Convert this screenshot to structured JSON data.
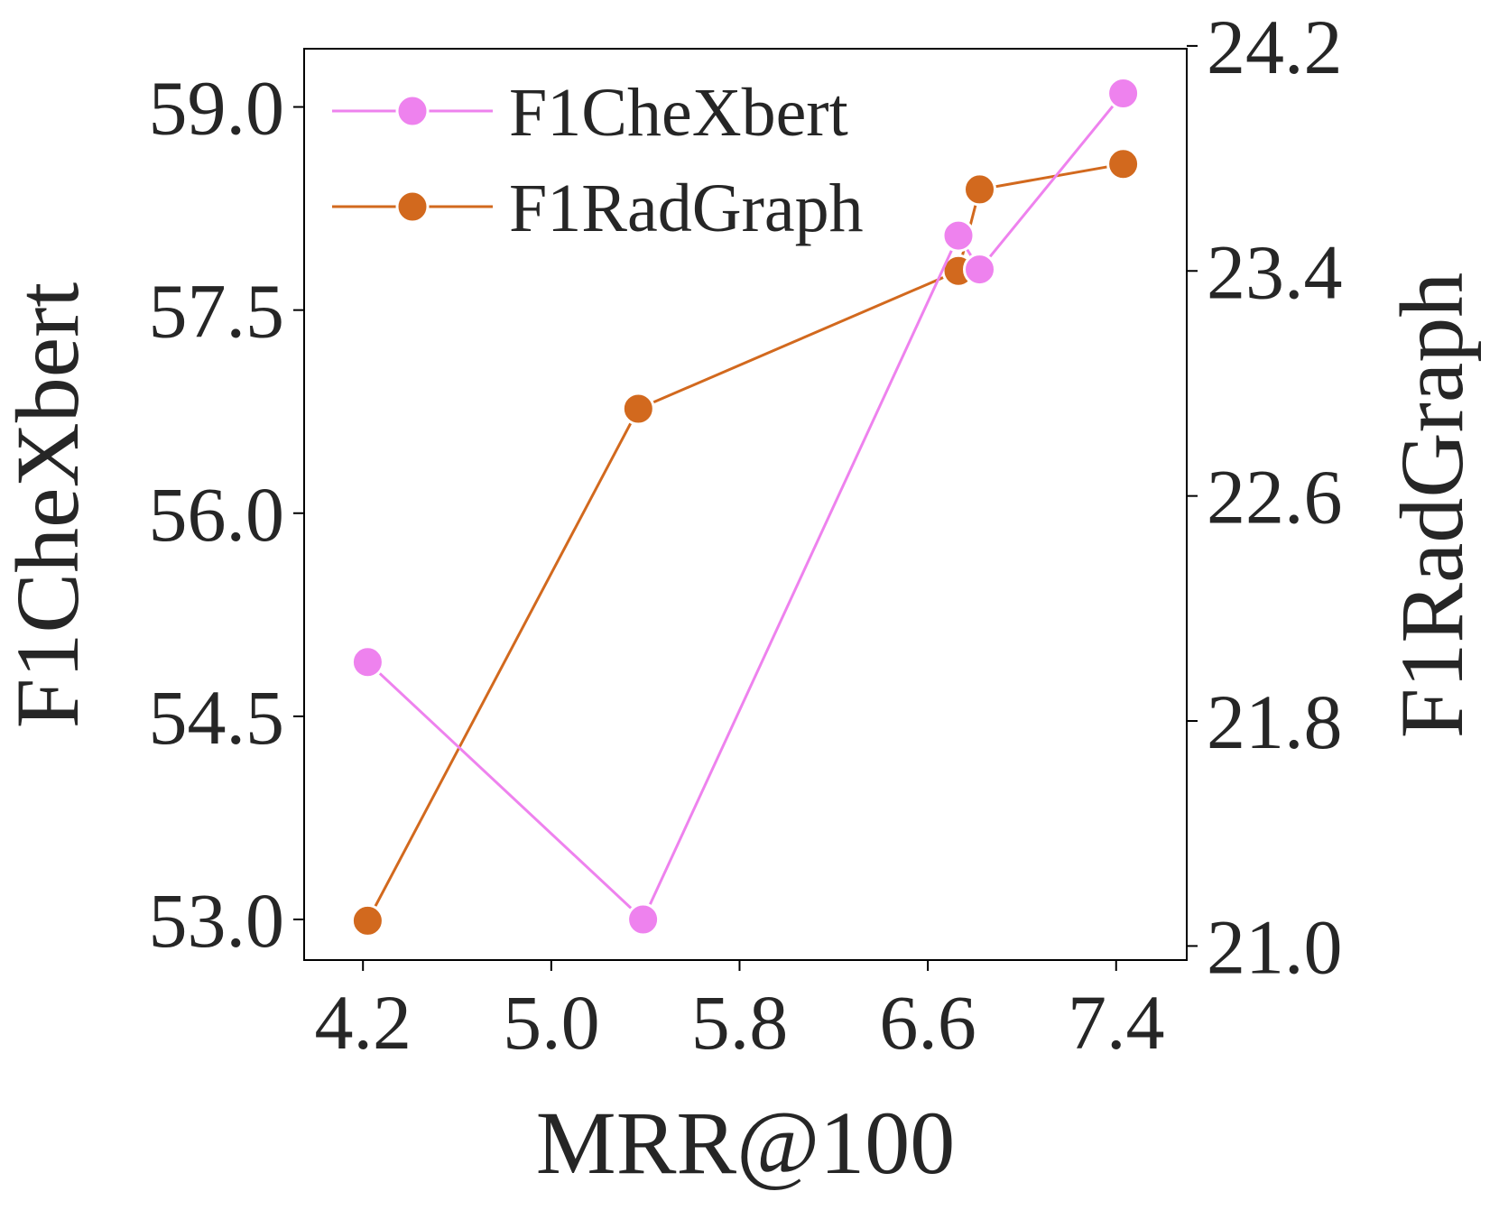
{
  "chart_data": {
    "type": "line",
    "xlabel": "MRR@100",
    "ylabel_left": "F1CheXbert",
    "ylabel_right": "F1RadGraph",
    "x_ticks": [
      "4.2",
      "5.0",
      "5.8",
      "6.6",
      "7.4"
    ],
    "y_left_ticks": [
      "53.0",
      "54.5",
      "56.0",
      "57.5",
      "59.0"
    ],
    "y_right_ticks": [
      "21.0",
      "21.8",
      "22.6",
      "23.4",
      "24.2"
    ],
    "xlim": [
      3.95,
      7.7
    ],
    "ylim_left": [
      52.7,
      59.43
    ],
    "ylim_right": [
      20.95,
      24.19
    ],
    "legend_position": "upper-left",
    "grid": false,
    "series": [
      {
        "name": "F1CheXbert",
        "axis": "left",
        "color": "#ee82ee",
        "x": [
          4.22,
          5.39,
          6.73,
          6.82,
          7.43
        ],
        "y": [
          54.9,
          53.0,
          58.05,
          57.8,
          59.1
        ]
      },
      {
        "name": "F1RadGraph",
        "axis": "right",
        "color": "#d2691e",
        "x": [
          4.22,
          5.37,
          6.73,
          6.82,
          7.43
        ],
        "y": [
          21.09,
          22.91,
          23.4,
          23.69,
          23.78
        ]
      }
    ]
  }
}
